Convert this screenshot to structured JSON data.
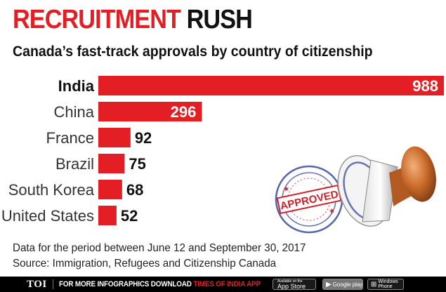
{
  "header": {
    "title_part1": "RECRUITMENT",
    "title_part2": "RUSH",
    "subtitle": "Canada’s fast-track approvals by country of citizenship"
  },
  "chart_data": {
    "type": "bar",
    "orientation": "horizontal",
    "categories": [
      "India",
      "China",
      "France",
      "Brazil",
      "South Korea",
      "United States"
    ],
    "values": [
      988,
      296,
      92,
      75,
      68,
      52
    ],
    "xlim": [
      0,
      988
    ],
    "bar_color": "#e31e24",
    "highlight_category": "India",
    "grid": false,
    "legend": "none"
  },
  "notes": {
    "period": "Data for the period between June 12 and September 30, 2017",
    "source": "Source: Immigration, Refugees and Citizenship Canada"
  },
  "illustration": {
    "stamp_text": "APPROVED",
    "stamp_color": "#d0212a"
  },
  "footer": {
    "brand": "TOI",
    "promo_text": "FOR MORE INFOGRAPHICS DOWNLOAD ",
    "promo_app": "TIMES OF INDIA APP",
    "app_store_small": "Available on the",
    "app_store": "App Store",
    "google_play": "Google play",
    "windows_small": "Windows",
    "windows": "Phone"
  }
}
